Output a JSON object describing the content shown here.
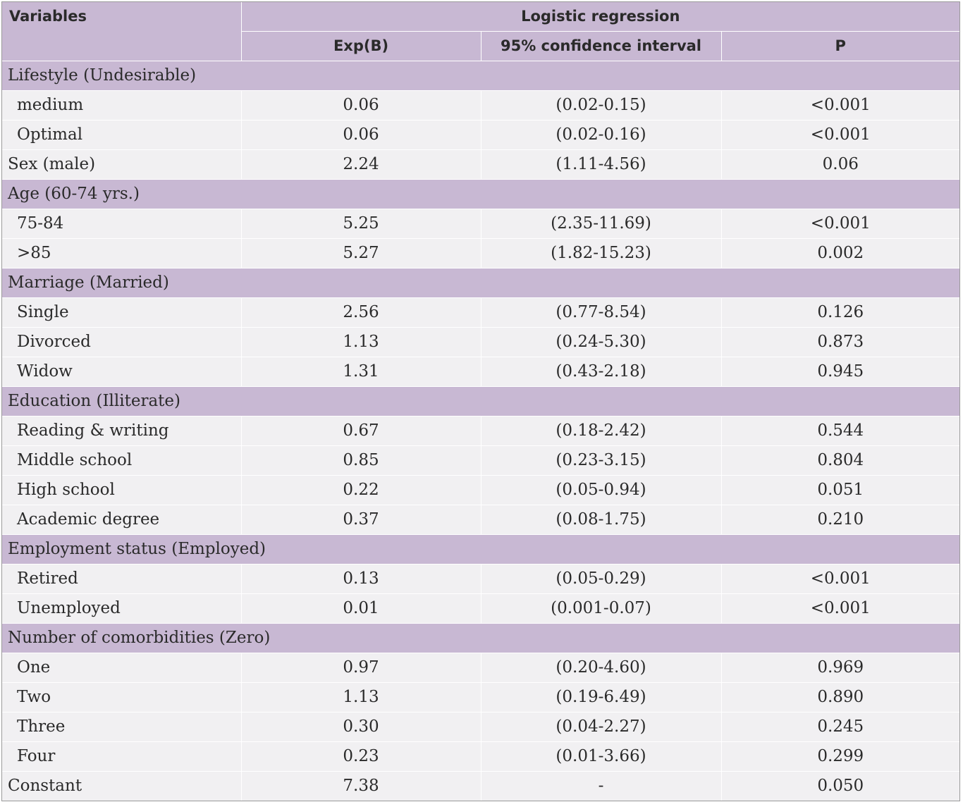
{
  "header": {
    "variables": "Variables",
    "group": "Logistic regression",
    "columns": [
      "Exp(B)",
      "95% confidence interval",
      "P"
    ]
  },
  "rows": [
    {
      "type": "section",
      "label": "Lifestyle (Undesirable)"
    },
    {
      "type": "data",
      "label": "medium",
      "expb": "0.06",
      "ci": "(0.02-0.15)",
      "p": "<0.001"
    },
    {
      "type": "data",
      "label": "Optimal",
      "expb": "0.06",
      "ci": "(0.02-0.16)",
      "p": "<0.001"
    },
    {
      "type": "data",
      "flush": true,
      "label": "Sex (male)",
      "expb": "2.24",
      "ci": "(1.11-4.56)",
      "p": "0.06"
    },
    {
      "type": "section",
      "label": "Age (60-74 yrs.)"
    },
    {
      "type": "data",
      "label": "75-84",
      "expb": "5.25",
      "ci": "(2.35-11.69)",
      "p": "<0.001"
    },
    {
      "type": "data",
      "label": ">85",
      "expb": "5.27",
      "ci": "(1.82-15.23)",
      "p": "0.002"
    },
    {
      "type": "section",
      "label": "Marriage (Married)"
    },
    {
      "type": "data",
      "label": "Single",
      "expb": "2.56",
      "ci": "(0.77-8.54)",
      "p": "0.126"
    },
    {
      "type": "data",
      "label": "Divorced",
      "expb": "1.13",
      "ci": "(0.24-5.30)",
      "p": "0.873"
    },
    {
      "type": "data",
      "label": "Widow",
      "expb": "1.31",
      "ci": "(0.43-2.18)",
      "p": "0.945"
    },
    {
      "type": "section",
      "label": "Education (Illiterate)"
    },
    {
      "type": "data",
      "label": "Reading & writing",
      "expb": "0.67",
      "ci": "(0.18-2.42)",
      "p": "0.544"
    },
    {
      "type": "data",
      "label": "Middle school",
      "expb": "0.85",
      "ci": "(0.23-3.15)",
      "p": "0.804"
    },
    {
      "type": "data",
      "label": "High school",
      "expb": "0.22",
      "ci": "(0.05-0.94)",
      "p": "0.051"
    },
    {
      "type": "data",
      "label": "Academic degree",
      "expb": "0.37",
      "ci": "(0.08-1.75)",
      "p": "0.210"
    },
    {
      "type": "section",
      "label": "Employment status (Employed)"
    },
    {
      "type": "data",
      "label": "Retired",
      "expb": "0.13",
      "ci": "(0.05-0.29)",
      "p": "<0.001"
    },
    {
      "type": "data",
      "label": "Unemployed",
      "expb": "0.01",
      "ci": "(0.001-0.07)",
      "p": "<0.001"
    },
    {
      "type": "section",
      "label": "Number of comorbidities (Zero)"
    },
    {
      "type": "data",
      "label": "One",
      "expb": "0.97",
      "ci": "(0.20-4.60)",
      "p": "0.969"
    },
    {
      "type": "data",
      "label": "Two",
      "expb": "1.13",
      "ci": "(0.19-6.49)",
      "p": "0.890"
    },
    {
      "type": "data",
      "label": "Three",
      "expb": "0.30",
      "ci": "(0.04-2.27)",
      "p": "0.245"
    },
    {
      "type": "data",
      "label": "Four",
      "expb": "0.23",
      "ci": "(0.01-3.66)",
      "p": "0.299"
    },
    {
      "type": "data",
      "flush": true,
      "label": "Constant",
      "expb": "7.38",
      "ci": "-",
      "p": "0.050"
    }
  ],
  "colors": {
    "header_bg": "#c8b8d3",
    "row_bg": "#f1f0f2",
    "text": "#2a2a2a"
  }
}
